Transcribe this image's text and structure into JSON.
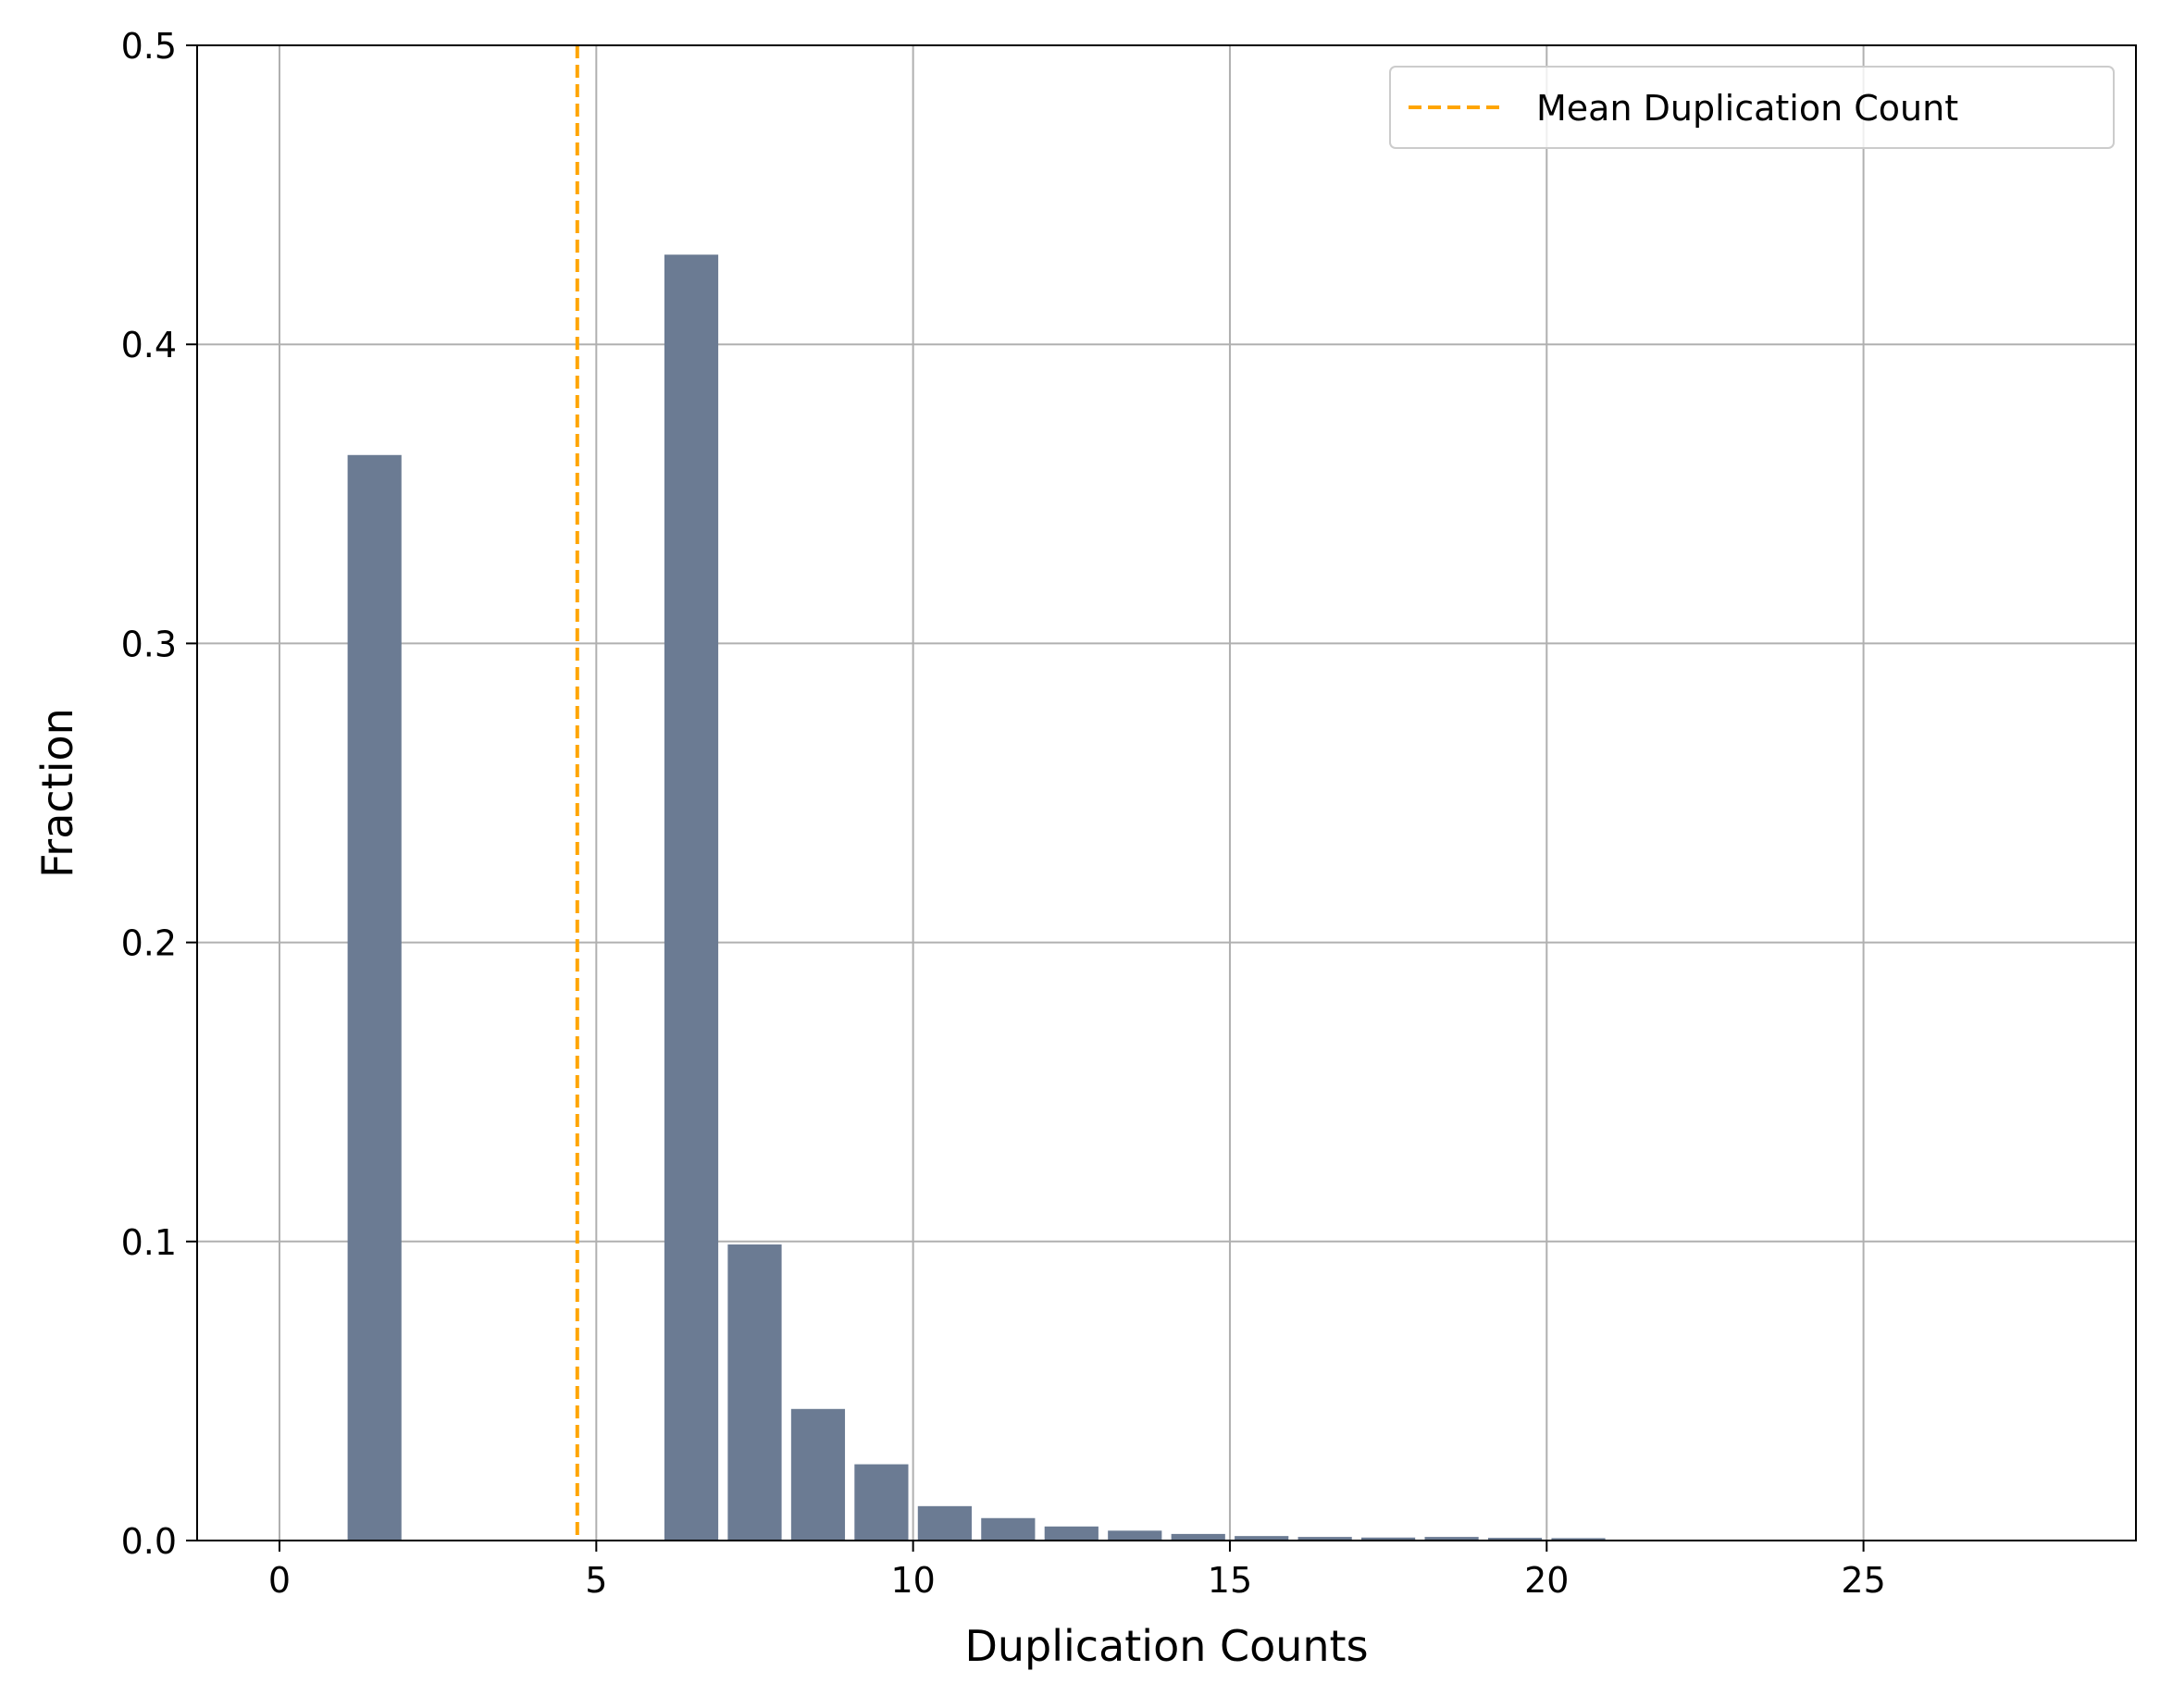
{
  "chart_data": {
    "type": "bar",
    "title": "",
    "xlabel": "Duplication Counts",
    "ylabel": "Fraction",
    "xlim": [
      -1.3,
      29.3
    ],
    "ylim": [
      0.0,
      0.5
    ],
    "x_ticks": [
      0,
      5,
      10,
      15,
      20,
      25
    ],
    "y_ticks": [
      0.0,
      0.1,
      0.2,
      0.3,
      0.4,
      0.5
    ],
    "x_tick_labels": [
      "0",
      "5",
      "10",
      "15",
      "20",
      "25"
    ],
    "y_tick_labels": [
      "0.0",
      "0.1",
      "0.2",
      "0.3",
      "0.4",
      "0.5"
    ],
    "grid": true,
    "bar_color": "#6b7b93",
    "bar_width": 0.85,
    "bars": [
      {
        "x": 1.5,
        "value": 0.363
      },
      {
        "x": 6.5,
        "value": 0.43
      },
      {
        "x": 7.5,
        "value": 0.099
      },
      {
        "x": 8.5,
        "value": 0.044
      },
      {
        "x": 9.5,
        "value": 0.0255
      },
      {
        "x": 10.5,
        "value": 0.0115
      },
      {
        "x": 11.5,
        "value": 0.0075
      },
      {
        "x": 12.5,
        "value": 0.0047
      },
      {
        "x": 13.5,
        "value": 0.0033
      },
      {
        "x": 14.5,
        "value": 0.0022
      },
      {
        "x": 15.5,
        "value": 0.0015
      },
      {
        "x": 16.5,
        "value": 0.0012
      },
      {
        "x": 17.5,
        "value": 0.001
      },
      {
        "x": 18.5,
        "value": 0.0012
      },
      {
        "x": 19.5,
        "value": 0.0009
      },
      {
        "x": 20.5,
        "value": 0.0008
      }
    ],
    "mean_line": {
      "x": 4.7,
      "color": "#ffa500",
      "style": "dashed",
      "label": "Mean Duplication Count"
    },
    "legend_position": "top-right"
  }
}
